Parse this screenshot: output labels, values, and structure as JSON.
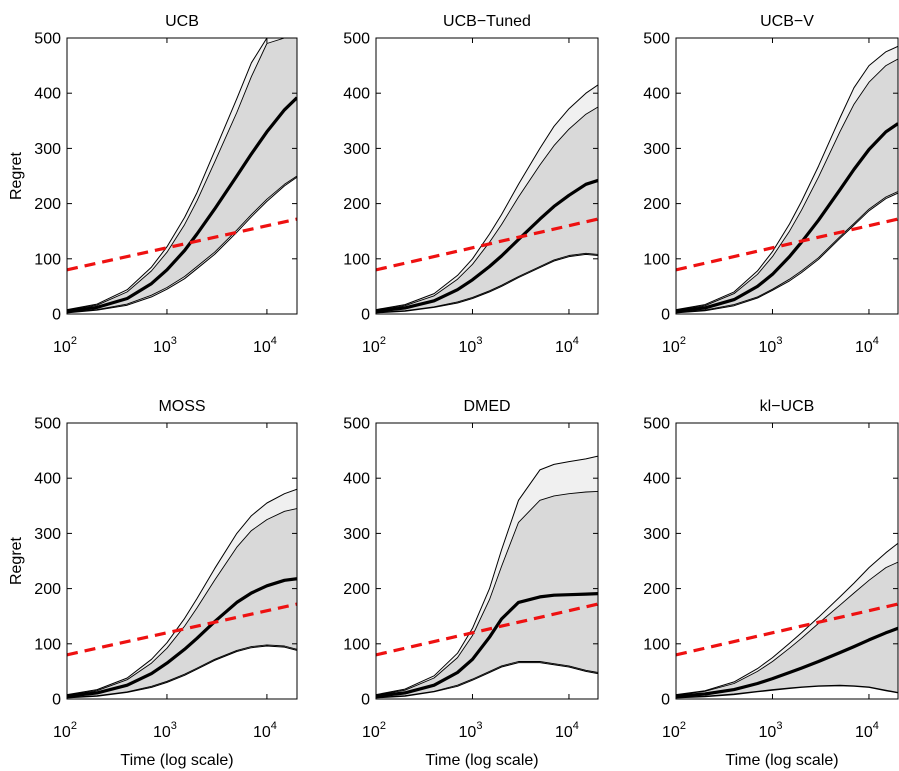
{
  "figure": {
    "ylabel": "Regret",
    "xlabel": "Time (log scale)",
    "colors": {
      "band_outer": "#f0f0f0",
      "band_inner": "#d9d9d9",
      "mean": "#000000",
      "bound": "#ee1111"
    }
  },
  "chart_data": [
    {
      "type": "line",
      "title": "UCB",
      "xscale": "log",
      "xlim": [
        100,
        20000
      ],
      "ylim": [
        0,
        500
      ],
      "yticks": [
        0,
        100,
        200,
        300,
        400,
        500
      ],
      "xticks": [
        100,
        1000,
        10000
      ],
      "xticklabels": [
        "10",
        "10",
        "10"
      ],
      "xtickexp": [
        "2",
        "3",
        "4"
      ],
      "x": [
        100,
        200,
        400,
        700,
        1000,
        1500,
        2000,
        3000,
        5000,
        7000,
        10000,
        15000,
        20000
      ],
      "mean": [
        5,
        12,
        28,
        55,
        80,
        115,
        145,
        190,
        250,
        290,
        330,
        370,
        392
      ],
      "inner_low": [
        3,
        8,
        18,
        34,
        48,
        68,
        86,
        112,
        152,
        180,
        208,
        235,
        250
      ],
      "inner_high": [
        7,
        16,
        40,
        78,
        112,
        162,
        205,
        275,
        365,
        430,
        490,
        500,
        500
      ],
      "outer_low": [
        2,
        7,
        16,
        31,
        45,
        64,
        82,
        108,
        148,
        176,
        204,
        232,
        248
      ],
      "outer_high": [
        8,
        18,
        44,
        85,
        122,
        175,
        220,
        295,
        390,
        455,
        500,
        500,
        500
      ],
      "bound": [
        80,
        172
      ]
    },
    {
      "type": "line",
      "title": "UCB−Tuned",
      "xscale": "log",
      "xlim": [
        100,
        20000
      ],
      "ylim": [
        0,
        500
      ],
      "yticks": [
        0,
        100,
        200,
        300,
        400,
        500
      ],
      "xticks": [
        100,
        1000,
        10000
      ],
      "xticklabels": [
        "10",
        "10",
        "10"
      ],
      "xtickexp": [
        "2",
        "3",
        "4"
      ],
      "x": [
        100,
        200,
        400,
        700,
        1000,
        1500,
        2000,
        3000,
        5000,
        7000,
        10000,
        15000,
        20000
      ],
      "mean": [
        5,
        11,
        24,
        44,
        62,
        86,
        105,
        135,
        172,
        195,
        215,
        235,
        242
      ],
      "inner_low": [
        3,
        6,
        13,
        22,
        30,
        42,
        52,
        68,
        86,
        98,
        106,
        110,
        108
      ],
      "inner_high": [
        7,
        15,
        33,
        63,
        90,
        130,
        162,
        212,
        270,
        305,
        335,
        362,
        375
      ],
      "outer_low": [
        2,
        5,
        12,
        20,
        28,
        40,
        50,
        66,
        84,
        96,
        104,
        108,
        106
      ],
      "outer_high": [
        8,
        17,
        37,
        70,
        100,
        145,
        180,
        235,
        300,
        340,
        372,
        400,
        415
      ],
      "bound": [
        80,
        172
      ]
    },
    {
      "type": "line",
      "title": "UCB−V",
      "xscale": "log",
      "xlim": [
        100,
        20000
      ],
      "ylim": [
        0,
        500
      ],
      "yticks": [
        0,
        100,
        200,
        300,
        400,
        500
      ],
      "xticks": [
        100,
        1000,
        10000
      ],
      "xticklabels": [
        "10",
        "10",
        "10"
      ],
      "xtickexp": [
        "2",
        "3",
        "4"
      ],
      "x": [
        100,
        200,
        400,
        700,
        1000,
        1500,
        2000,
        3000,
        5000,
        7000,
        10000,
        15000,
        20000
      ],
      "mean": [
        5,
        11,
        26,
        50,
        72,
        104,
        130,
        170,
        225,
        262,
        298,
        330,
        345
      ],
      "inner_low": [
        3,
        7,
        17,
        31,
        45,
        63,
        78,
        102,
        140,
        164,
        190,
        212,
        222
      ],
      "inner_high": [
        7,
        15,
        37,
        72,
        104,
        150,
        188,
        248,
        330,
        380,
        420,
        450,
        462
      ],
      "outer_low": [
        2,
        6,
        15,
        29,
        43,
        60,
        75,
        99,
        137,
        161,
        187,
        209,
        219
      ],
      "outer_high": [
        8,
        17,
        40,
        78,
        113,
        163,
        204,
        268,
        355,
        410,
        450,
        475,
        485
      ],
      "bound": [
        80,
        172
      ]
    },
    {
      "type": "line",
      "title": "MOSS",
      "xscale": "log",
      "xlim": [
        100,
        20000
      ],
      "ylim": [
        0,
        500
      ],
      "yticks": [
        0,
        100,
        200,
        300,
        400,
        500
      ],
      "xticks": [
        100,
        1000,
        10000
      ],
      "xticklabels": [
        "10",
        "10",
        "10"
      ],
      "xtickexp": [
        "2",
        "3",
        "4"
      ],
      "x": [
        100,
        200,
        400,
        700,
        1000,
        1500,
        2000,
        3000,
        5000,
        7000,
        10000,
        15000,
        20000
      ],
      "mean": [
        5,
        11,
        25,
        46,
        65,
        90,
        110,
        140,
        175,
        192,
        205,
        215,
        218
      ],
      "inner_low": [
        3,
        6,
        13,
        23,
        32,
        45,
        56,
        72,
        88,
        95,
        98,
        96,
        90
      ],
      "inner_high": [
        7,
        15,
        35,
        65,
        92,
        132,
        165,
        215,
        275,
        305,
        325,
        340,
        345
      ],
      "outer_low": [
        2,
        5,
        12,
        21,
        30,
        43,
        54,
        70,
        86,
        93,
        96,
        94,
        88
      ],
      "outer_high": [
        8,
        17,
        38,
        72,
        102,
        146,
        182,
        236,
        300,
        332,
        355,
        372,
        380
      ],
      "bound": [
        80,
        172
      ]
    },
    {
      "type": "line",
      "title": "DMED",
      "xscale": "log",
      "xlim": [
        100,
        20000
      ],
      "ylim": [
        0,
        500
      ],
      "yticks": [
        0,
        100,
        200,
        300,
        400,
        500
      ],
      "xticks": [
        100,
        1000,
        10000
      ],
      "xticklabels": [
        "10",
        "10",
        "10"
      ],
      "xtickexp": [
        "2",
        "3",
        "4"
      ],
      "x": [
        100,
        200,
        400,
        700,
        1000,
        1500,
        2000,
        3000,
        5000,
        7000,
        10000,
        15000,
        20000
      ],
      "mean": [
        5,
        11,
        25,
        48,
        72,
        112,
        145,
        175,
        185,
        188,
        189,
        190,
        191
      ],
      "inner_low": [
        3,
        6,
        14,
        25,
        36,
        50,
        60,
        68,
        68,
        64,
        60,
        52,
        48
      ],
      "inner_high": [
        7,
        16,
        38,
        75,
        115,
        180,
        240,
        320,
        360,
        368,
        372,
        375,
        376
      ],
      "outer_low": [
        2,
        5,
        13,
        23,
        34,
        48,
        58,
        66,
        66,
        62,
        58,
        50,
        46
      ],
      "outer_high": [
        8,
        18,
        42,
        83,
        128,
        200,
        270,
        360,
        415,
        425,
        430,
        435,
        440
      ],
      "bound": [
        80,
        172
      ]
    },
    {
      "type": "line",
      "title": "kl−UCB",
      "xscale": "log",
      "xlim": [
        100,
        20000
      ],
      "ylim": [
        0,
        500
      ],
      "yticks": [
        0,
        100,
        200,
        300,
        400,
        500
      ],
      "xticks": [
        100,
        1000,
        10000
      ],
      "xticklabels": [
        "10",
        "10",
        "10"
      ],
      "xtickexp": [
        "2",
        "3",
        "4"
      ],
      "x": [
        100,
        200,
        400,
        700,
        1000,
        1500,
        2000,
        3000,
        5000,
        7000,
        10000,
        15000,
        20000
      ],
      "mean": [
        5,
        9,
        17,
        28,
        37,
        48,
        56,
        68,
        84,
        95,
        107,
        120,
        128
      ],
      "inner_low": [
        3,
        5,
        9,
        14,
        17,
        20,
        22,
        24,
        25,
        24,
        22,
        16,
        12
      ],
      "inner_high": [
        7,
        14,
        28,
        50,
        68,
        92,
        110,
        137,
        170,
        192,
        215,
        238,
        248
      ],
      "outer_low": [
        2,
        4,
        8,
        13,
        16,
        19,
        21,
        23,
        24,
        23,
        21,
        15,
        11
      ],
      "outer_high": [
        8,
        15,
        31,
        55,
        75,
        101,
        120,
        148,
        185,
        210,
        238,
        265,
        282
      ],
      "bound": [
        80,
        172
      ]
    }
  ]
}
